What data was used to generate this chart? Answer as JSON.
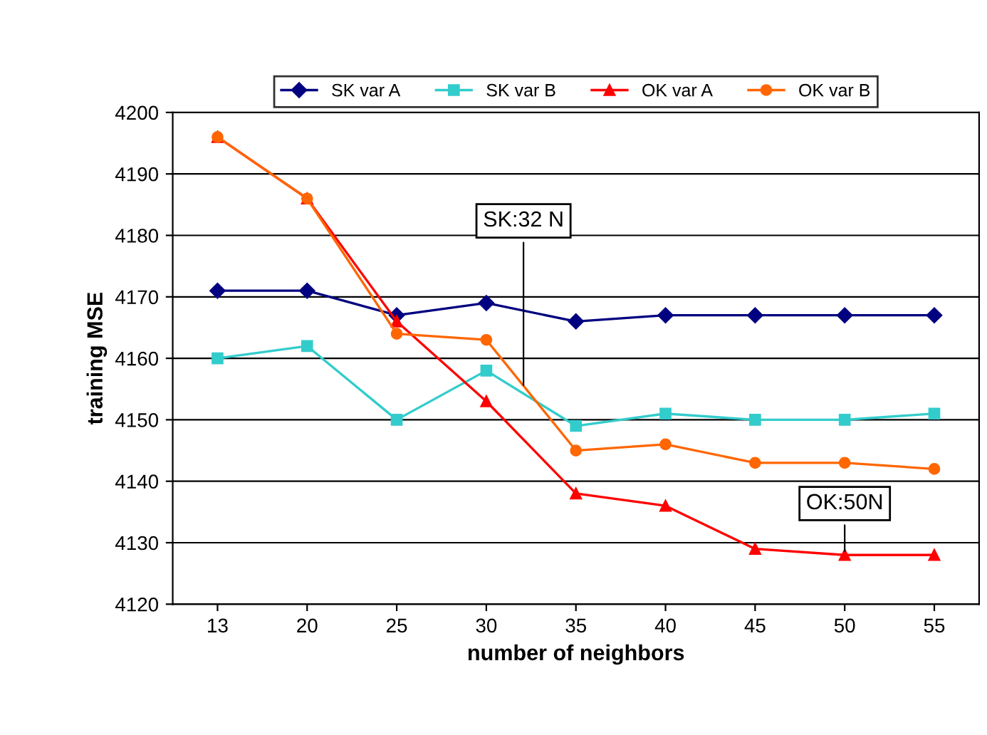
{
  "chart_data": {
    "type": "line",
    "xlabel": "number of neighbors",
    "ylabel": "training MSE",
    "categories": [
      "13",
      "20",
      "25",
      "30",
      "35",
      "40",
      "45",
      "50",
      "55"
    ],
    "series": [
      {
        "name": "SK var A",
        "color": "#000080",
        "marker": "diamond",
        "values": [
          4171,
          4171,
          4167,
          4169,
          4166,
          4167,
          4167,
          4167,
          4167
        ]
      },
      {
        "name": "SK var B",
        "color": "#33cccc",
        "marker": "square",
        "values": [
          4160,
          4162,
          4150,
          4158,
          4149,
          4151,
          4150,
          4150,
          4151
        ]
      },
      {
        "name": "OK var A",
        "color": "#ff0000",
        "marker": "triangle",
        "values": [
          4196,
          4186,
          4166,
          4153,
          4138,
          4136,
          4129,
          4128,
          4128
        ]
      },
      {
        "name": "OK var B",
        "color": "#ff6600",
        "marker": "circle",
        "values": [
          4196,
          4186,
          4164,
          4163,
          4145,
          4146,
          4143,
          4143,
          4142
        ]
      }
    ],
    "ylim": [
      4120,
      4200
    ],
    "yticks": [
      4120,
      4130,
      4140,
      4150,
      4160,
      4170,
      4180,
      4190,
      4200
    ],
    "grid": "y",
    "legend": "top",
    "line_style": "solid",
    "annotations": [
      {
        "text": "SK:32 N",
        "y": 4155
      },
      {
        "text": "OK:50N",
        "x": "50",
        "y": 4128
      }
    ]
  }
}
